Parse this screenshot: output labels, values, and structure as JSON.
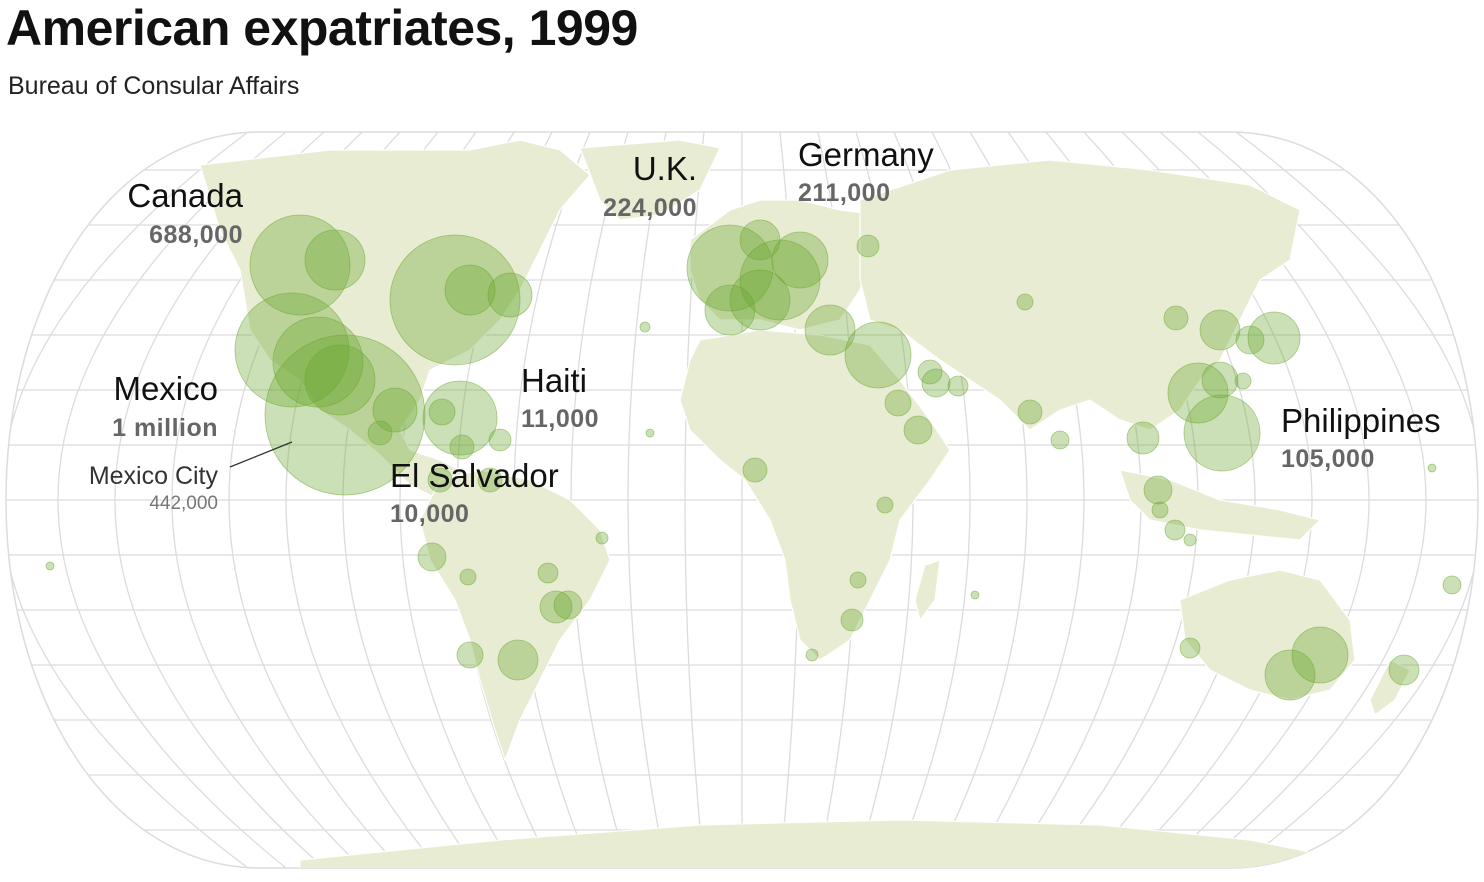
{
  "header": {
    "title": "American expatriates, 1999",
    "subtitle": "Bureau of Consular Affairs"
  },
  "colors": {
    "land": "#e7ecd2",
    "bubble": "#69a52d",
    "grid": "#dcdcdc",
    "value_text": "#666666"
  },
  "labels": [
    {
      "id": "canada",
      "name": "Canada",
      "value": "688,000"
    },
    {
      "id": "uk",
      "name": "U.K.",
      "value": "224,000"
    },
    {
      "id": "germany",
      "name": "Germany",
      "value": "211,000"
    },
    {
      "id": "mexico",
      "name": "Mexico",
      "value": "1 million"
    },
    {
      "id": "haiti",
      "name": "Haiti",
      "value": "11,000"
    },
    {
      "id": "elsalvador",
      "name": "El Salvador",
      "value": "10,000"
    },
    {
      "id": "philippines",
      "name": "Philippines",
      "value": "105,000"
    }
  ],
  "city_callout": {
    "name": "Mexico City",
    "value": "442,000"
  }
}
